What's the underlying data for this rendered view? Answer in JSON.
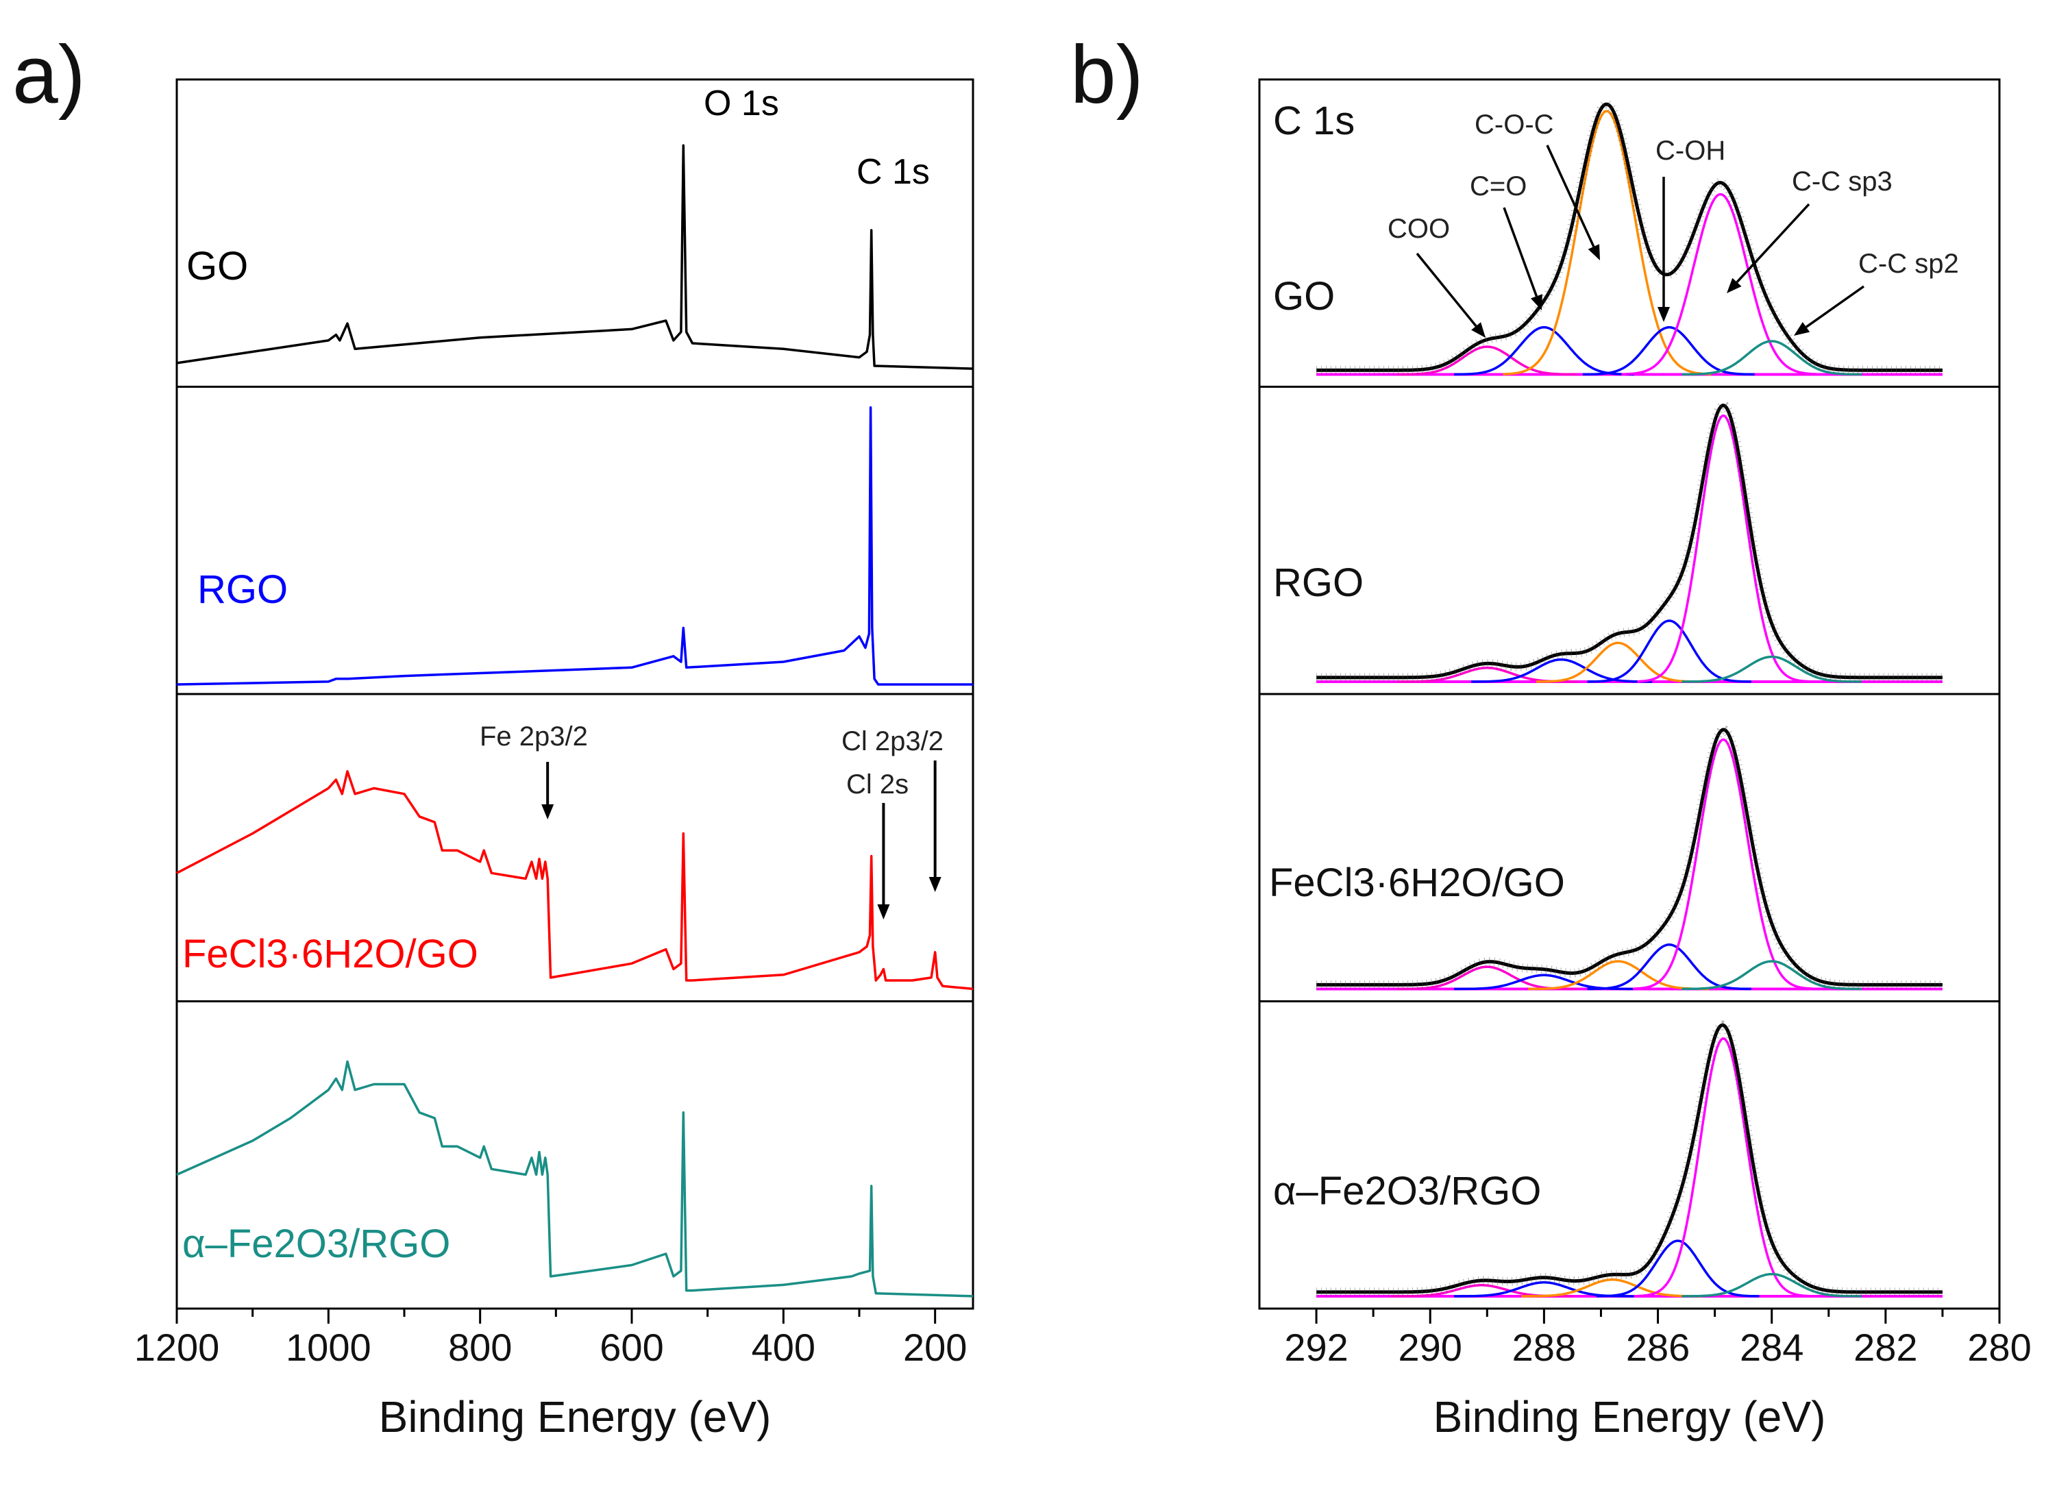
{
  "figure": {
    "panel_a_label": "a)",
    "panel_b_label": "b)"
  },
  "chart_data": [
    {
      "panel": "a",
      "type": "line",
      "title": "",
      "xlabel": "Binding Energy (eV)",
      "ylabel": "",
      "xlim": [
        1200,
        150
      ],
      "xticks": [
        1200,
        1000,
        800,
        600,
        400,
        200
      ],
      "grid": false,
      "series": [
        {
          "name": "GO",
          "color": "#000000",
          "points": [
            [
              1200,
              0.05
            ],
            [
              1100,
              0.09
            ],
            [
              1000,
              0.13
            ],
            [
              990,
              0.15
            ],
            [
              985,
              0.13
            ],
            [
              975,
              0.19
            ],
            [
              965,
              0.1
            ],
            [
              800,
              0.14
            ],
            [
              600,
              0.17
            ],
            [
              555,
              0.2
            ],
            [
              545,
              0.13
            ],
            [
              535,
              0.16
            ],
            [
              532,
              0.82
            ],
            [
              528,
              0.16
            ],
            [
              520,
              0.12
            ],
            [
              400,
              0.1
            ],
            [
              300,
              0.07
            ],
            [
              290,
              0.09
            ],
            [
              286,
              0.15
            ],
            [
              284,
              0.52
            ],
            [
              282,
              0.15
            ],
            [
              280,
              0.04
            ],
            [
              150,
              0.03
            ]
          ]
        },
        {
          "name": "RGO",
          "color": "#0000ff",
          "points": [
            [
              1200,
              0.0
            ],
            [
              1000,
              0.01
            ],
            [
              990,
              0.02
            ],
            [
              975,
              0.02
            ],
            [
              900,
              0.03
            ],
            [
              600,
              0.06
            ],
            [
              545,
              0.1
            ],
            [
              535,
              0.08
            ],
            [
              532,
              0.2
            ],
            [
              528,
              0.06
            ],
            [
              400,
              0.08
            ],
            [
              320,
              0.12
            ],
            [
              300,
              0.17
            ],
            [
              292,
              0.13
            ],
            [
              287,
              0.18
            ],
            [
              285,
              0.98
            ],
            [
              283,
              0.2
            ],
            [
              280,
              0.02
            ],
            [
              275,
              0.0
            ],
            [
              150,
              0.0
            ]
          ]
        },
        {
          "name": "FeCl3·6H2O/GO",
          "color": "#ff0000",
          "points": [
            [
              1200,
              0.42
            ],
            [
              1100,
              0.56
            ],
            [
              1050,
              0.64
            ],
            [
              1000,
              0.72
            ],
            [
              990,
              0.75
            ],
            [
              982,
              0.7
            ],
            [
              975,
              0.78
            ],
            [
              965,
              0.7
            ],
            [
              940,
              0.72
            ],
            [
              900,
              0.7
            ],
            [
              880,
              0.62
            ],
            [
              860,
              0.6
            ],
            [
              850,
              0.5
            ],
            [
              830,
              0.5
            ],
            [
              800,
              0.46
            ],
            [
              795,
              0.5
            ],
            [
              785,
              0.42
            ],
            [
              740,
              0.4
            ],
            [
              732,
              0.46
            ],
            [
              726,
              0.4
            ],
            [
              722,
              0.47
            ],
            [
              718,
              0.4
            ],
            [
              714,
              0.46
            ],
            [
              711,
              0.4
            ],
            [
              707,
              0.05
            ],
            [
              600,
              0.1
            ],
            [
              555,
              0.15
            ],
            [
              545,
              0.08
            ],
            [
              535,
              0.1
            ],
            [
              532,
              0.56
            ],
            [
              528,
              0.04
            ],
            [
              520,
              0.04
            ],
            [
              400,
              0.06
            ],
            [
              300,
              0.14
            ],
            [
              290,
              0.16
            ],
            [
              286,
              0.2
            ],
            [
              284,
              0.48
            ],
            [
              282,
              0.16
            ],
            [
              278,
              0.04
            ],
            [
              272,
              0.06
            ],
            [
              268,
              0.08
            ],
            [
              265,
              0.04
            ],
            [
              230,
              0.04
            ],
            [
              205,
              0.05
            ],
            [
              200,
              0.14
            ],
            [
              197,
              0.05
            ],
            [
              190,
              0.02
            ],
            [
              150,
              0.01
            ]
          ]
        },
        {
          "name": "α–Fe2O3/RGO",
          "color": "#1a8f86",
          "points": [
            [
              1200,
              0.44
            ],
            [
              1100,
              0.56
            ],
            [
              1050,
              0.64
            ],
            [
              1000,
              0.74
            ],
            [
              990,
              0.78
            ],
            [
              982,
              0.74
            ],
            [
              975,
              0.84
            ],
            [
              965,
              0.74
            ],
            [
              940,
              0.76
            ],
            [
              900,
              0.76
            ],
            [
              880,
              0.66
            ],
            [
              860,
              0.64
            ],
            [
              850,
              0.54
            ],
            [
              830,
              0.54
            ],
            [
              800,
              0.5
            ],
            [
              795,
              0.54
            ],
            [
              785,
              0.46
            ],
            [
              740,
              0.44
            ],
            [
              732,
              0.5
            ],
            [
              726,
              0.44
            ],
            [
              722,
              0.52
            ],
            [
              718,
              0.44
            ],
            [
              714,
              0.5
            ],
            [
              711,
              0.44
            ],
            [
              707,
              0.08
            ],
            [
              600,
              0.12
            ],
            [
              555,
              0.16
            ],
            [
              545,
              0.08
            ],
            [
              535,
              0.1
            ],
            [
              532,
              0.66
            ],
            [
              528,
              0.03
            ],
            [
              520,
              0.03
            ],
            [
              400,
              0.05
            ],
            [
              310,
              0.08
            ],
            [
              300,
              0.09
            ],
            [
              286,
              0.1
            ],
            [
              284,
              0.4
            ],
            [
              282,
              0.08
            ],
            [
              278,
              0.02
            ],
            [
              150,
              0.01
            ]
          ]
        }
      ],
      "annotations": {
        "panel1": [
          "O 1s",
          "C 1s"
        ],
        "panel3": [
          "Fe 2p3/2",
          "Cl 2p3/2",
          "Cl 2s"
        ]
      }
    },
    {
      "panel": "b",
      "type": "line",
      "title": "C 1s",
      "xlabel": "Binding Energy (eV)",
      "ylabel": "",
      "xlim": [
        293,
        280
      ],
      "xticks": [
        292,
        290,
        288,
        286,
        284,
        282,
        280
      ],
      "grid": false,
      "baseline_color": "#ff00ff",
      "components": [
        {
          "name": "COO",
          "color": "#ff00cc"
        },
        {
          "name": "C=O",
          "color": "#0000ff"
        },
        {
          "name": "C-O-C",
          "color": "#ff8c00"
        },
        {
          "name": "C-OH",
          "color": "#0000ff"
        },
        {
          "name": "C-C sp3",
          "color": "#ff00ff"
        },
        {
          "name": "C-C sp2",
          "color": "#1a8f86"
        }
      ],
      "panels": [
        {
          "name": "GO",
          "peaks": [
            {
              "component": "COO",
              "center": 289.0,
              "height": 0.1,
              "fwhm": 1.0
            },
            {
              "component": "C=O",
              "center": 288.0,
              "height": 0.17,
              "fwhm": 1.0
            },
            {
              "component": "C-O-C",
              "center": 286.9,
              "height": 0.95,
              "fwhm": 1.15
            },
            {
              "component": "C-OH",
              "center": 285.8,
              "height": 0.17,
              "fwhm": 0.95
            },
            {
              "component": "C-C sp3",
              "center": 284.9,
              "height": 0.65,
              "fwhm": 1.1
            },
            {
              "component": "C-C sp2",
              "center": 284.0,
              "height": 0.12,
              "fwhm": 1.0
            }
          ]
        },
        {
          "name": "RGO",
          "peaks": [
            {
              "component": "COO",
              "center": 289.0,
              "height": 0.05,
              "fwhm": 1.0
            },
            {
              "component": "C=O",
              "center": 287.7,
              "height": 0.08,
              "fwhm": 1.0
            },
            {
              "component": "C-O-C",
              "center": 286.7,
              "height": 0.14,
              "fwhm": 0.9
            },
            {
              "component": "C-OH",
              "center": 285.8,
              "height": 0.22,
              "fwhm": 0.9
            },
            {
              "component": "C-C sp3",
              "center": 284.85,
              "height": 0.96,
              "fwhm": 0.95
            },
            {
              "component": "C-C sp2",
              "center": 284.0,
              "height": 0.09,
              "fwhm": 1.0
            }
          ]
        },
        {
          "name": "FeCl3·6H2O/GO",
          "peaks": [
            {
              "component": "COO",
              "center": 289.0,
              "height": 0.08,
              "fwhm": 1.0
            },
            {
              "component": "C=O",
              "center": 288.0,
              "height": 0.05,
              "fwhm": 1.0
            },
            {
              "component": "C-O-C",
              "center": 286.7,
              "height": 0.1,
              "fwhm": 1.0
            },
            {
              "component": "C-OH",
              "center": 285.8,
              "height": 0.16,
              "fwhm": 0.9
            },
            {
              "component": "C-C sp3",
              "center": 284.85,
              "height": 0.9,
              "fwhm": 1.0
            },
            {
              "component": "C-C sp2",
              "center": 284.0,
              "height": 0.1,
              "fwhm": 1.0
            }
          ]
        },
        {
          "name": "α–Fe2O3/RGO",
          "peaks": [
            {
              "component": "COO",
              "center": 289.1,
              "height": 0.04,
              "fwhm": 1.0
            },
            {
              "component": "C=O",
              "center": 288.0,
              "height": 0.05,
              "fwhm": 1.0
            },
            {
              "component": "C-O-C",
              "center": 286.8,
              "height": 0.06,
              "fwhm": 1.0
            },
            {
              "component": "C-OH",
              "center": 285.65,
              "height": 0.2,
              "fwhm": 0.9
            },
            {
              "component": "C-C sp3",
              "center": 284.85,
              "height": 0.93,
              "fwhm": 0.95
            },
            {
              "component": "C-C sp2",
              "center": 284.0,
              "height": 0.08,
              "fwhm": 1.0
            }
          ]
        }
      ]
    }
  ]
}
